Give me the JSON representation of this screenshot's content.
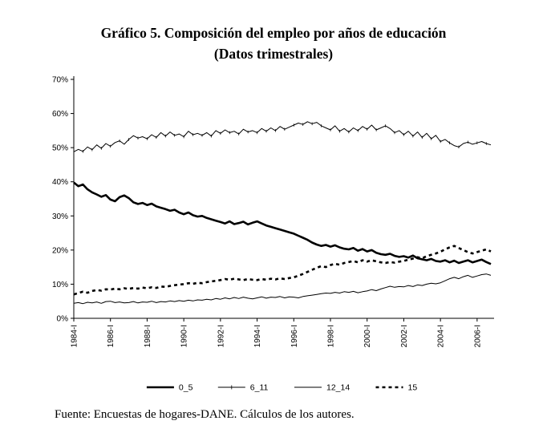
{
  "page": {
    "title_line1": "Gráfico 5. Composición del empleo por años de educación",
    "title_line2": "(Datos trimestrales)",
    "source": "Fuente: Encuestas de hogares-DANE. Cálculos de los autores."
  },
  "chart_data": {
    "type": "line",
    "title": "Gráfico 5. Composición del empleo por años de educación",
    "subtitle": "(Datos trimestrales)",
    "x_unit": "quarter",
    "x_start": "1984-I",
    "x_end": "2006-IV",
    "x_tick_every": 8,
    "x_tick_labels": [
      "1984-I",
      "1986-I",
      "1988-I",
      "1990-I",
      "1992-I",
      "1994-I",
      "1996-I",
      "1998-I",
      "2000-I",
      "2002-I",
      "2004-I",
      "2006-I"
    ],
    "ylim": [
      0,
      70
    ],
    "y_tick_step": 10,
    "y_tick_labels": [
      "0%",
      "10%",
      "20%",
      "30%",
      "40%",
      "50%",
      "60%",
      "70%"
    ],
    "grid": false,
    "legend_position": "bottom",
    "line_color": "#000000",
    "background_color": "#ffffff",
    "series": [
      {
        "name": "0_5",
        "style": "thick-solid",
        "values": [
          39.8,
          38.7,
          39.2,
          37.8,
          36.9,
          36.3,
          35.6,
          36.1,
          34.8,
          34.3,
          35.5,
          36.0,
          35.2,
          34.0,
          33.5,
          33.8,
          33.2,
          33.6,
          32.8,
          32.4,
          32.0,
          31.5,
          31.8,
          31.0,
          30.5,
          31.0,
          30.2,
          29.8,
          30.0,
          29.4,
          29.0,
          28.6,
          28.2,
          27.8,
          28.4,
          27.6,
          27.9,
          28.3,
          27.5,
          28.0,
          28.4,
          27.8,
          27.2,
          26.8,
          26.4,
          26.0,
          25.6,
          25.2,
          24.8,
          24.2,
          23.6,
          23.0,
          22.2,
          21.6,
          21.2,
          21.5,
          21.0,
          21.4,
          20.8,
          20.4,
          20.2,
          20.6,
          19.8,
          20.3,
          19.6,
          20.0,
          19.2,
          18.8,
          18.6,
          18.9,
          18.3,
          18.0,
          18.2,
          17.8,
          18.4,
          17.6,
          17.3,
          17.0,
          17.4,
          16.8,
          16.6,
          17.0,
          16.4,
          16.9,
          16.2,
          16.6,
          17.0,
          16.4,
          16.8,
          17.2,
          16.5,
          15.9
        ]
      },
      {
        "name": "6_11",
        "style": "thin-solid-marker",
        "values": [
          48.8,
          49.5,
          48.9,
          50.2,
          49.4,
          50.8,
          49.8,
          51.2,
          50.4,
          51.5,
          52.0,
          51.0,
          52.4,
          53.5,
          52.8,
          53.2,
          52.6,
          53.8,
          53.0,
          54.4,
          53.4,
          54.6,
          53.6,
          54.0,
          53.2,
          54.8,
          53.8,
          54.2,
          53.6,
          54.4,
          53.4,
          55.0,
          54.2,
          55.2,
          54.4,
          54.8,
          54.0,
          55.4,
          54.6,
          55.0,
          54.4,
          55.6,
          54.8,
          55.8,
          55.0,
          56.2,
          55.4,
          56.0,
          56.6,
          57.2,
          56.8,
          57.6,
          57.0,
          57.4,
          56.4,
          55.8,
          55.2,
          56.4,
          54.8,
          55.6,
          54.6,
          55.8,
          55.0,
          56.2,
          55.4,
          56.6,
          55.2,
          55.8,
          56.4,
          55.6,
          54.4,
          55.0,
          53.8,
          54.8,
          53.4,
          54.6,
          53.0,
          54.2,
          52.6,
          53.6,
          51.8,
          52.4,
          51.4,
          50.6,
          50.2,
          51.2,
          51.6,
          51.0,
          51.4,
          51.8,
          51.2,
          50.8
        ]
      },
      {
        "name": "12_14",
        "style": "thin-solid",
        "values": [
          4.4,
          4.6,
          4.3,
          4.7,
          4.5,
          4.8,
          4.4,
          4.9,
          5.0,
          4.6,
          4.8,
          4.5,
          4.6,
          4.9,
          4.5,
          4.8,
          4.7,
          5.0,
          4.6,
          4.9,
          4.8,
          5.1,
          4.9,
          5.2,
          5.0,
          5.3,
          5.1,
          5.4,
          5.3,
          5.6,
          5.4,
          5.8,
          5.6,
          6.0,
          5.7,
          6.1,
          5.8,
          6.2,
          5.9,
          5.7,
          6.0,
          6.3,
          5.9,
          6.2,
          6.1,
          6.4,
          6.0,
          6.3,
          6.2,
          6.0,
          6.4,
          6.6,
          6.8,
          7.0,
          7.2,
          7.4,
          7.3,
          7.6,
          7.4,
          7.8,
          7.6,
          7.9,
          7.5,
          7.8,
          8.0,
          8.4,
          8.1,
          8.6,
          9.0,
          9.4,
          9.1,
          9.3,
          9.2,
          9.6,
          9.3,
          9.8,
          9.6,
          10.0,
          10.3,
          10.1,
          10.4,
          11.0,
          11.6,
          12.0,
          11.6,
          12.2,
          12.6,
          12.0,
          12.4,
          12.8,
          13.0,
          12.6
        ]
      },
      {
        "name": "15",
        "style": "thick-dashed",
        "values": [
          7.0,
          7.4,
          7.8,
          7.5,
          8.0,
          8.3,
          8.1,
          8.5,
          8.4,
          8.7,
          8.5,
          8.8,
          8.6,
          8.9,
          8.7,
          9.0,
          8.8,
          9.1,
          8.9,
          9.3,
          9.2,
          9.5,
          9.7,
          9.9,
          10.0,
          10.3,
          10.1,
          10.4,
          10.3,
          10.6,
          10.8,
          11.0,
          11.2,
          11.5,
          11.3,
          11.6,
          11.4,
          11.2,
          11.5,
          11.3,
          11.2,
          11.5,
          11.3,
          11.6,
          11.4,
          11.7,
          11.5,
          11.8,
          12.0,
          12.5,
          13.0,
          13.6,
          14.2,
          14.8,
          15.3,
          15.0,
          15.6,
          16.0,
          15.7,
          16.2,
          16.5,
          16.8,
          16.4,
          17.0,
          16.6,
          17.0,
          16.7,
          16.4,
          16.2,
          16.5,
          16.3,
          16.6,
          16.8,
          17.2,
          17.5,
          17.9,
          17.6,
          18.2,
          18.6,
          19.0,
          19.5,
          20.2,
          20.8,
          21.2,
          20.6,
          20.0,
          19.4,
          19.0,
          19.4,
          19.8,
          20.2,
          19.6
        ]
      }
    ]
  }
}
